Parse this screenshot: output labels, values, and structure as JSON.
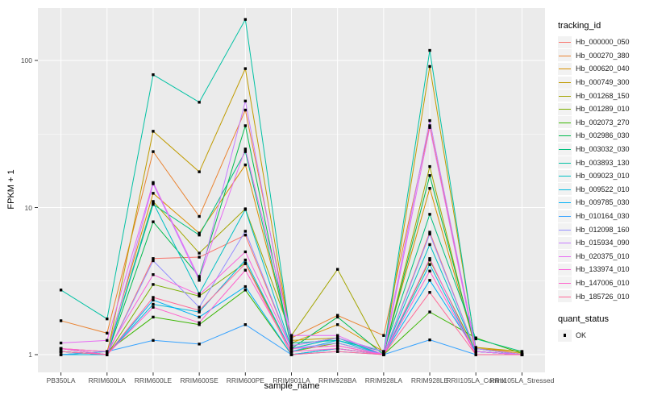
{
  "chart_data": {
    "type": "line",
    "title": "",
    "xlabel": "sample_name",
    "ylabel": "FPKM + 1",
    "y_scale": "log10",
    "yticks": [
      "1",
      "10",
      "100"
    ],
    "ytick_values": [
      1,
      10,
      100
    ],
    "minor_gridline_values": [
      3.1623,
      31.623
    ],
    "ylim": [
      0.76,
      227
    ],
    "grid": "white major+minor gridlines on gray panel",
    "legend_position": "right",
    "categories": [
      "PB350LA",
      "RRIM600LA",
      "RRIM600LE",
      "RRIM600SE",
      "RRIM600PE",
      "RRIM901LA",
      "RRIM928BA",
      "RRIM928LA",
      "RRIM928LE",
      "RRII105LA_Control",
      "RRII105LA_Stressed"
    ],
    "series": [
      {
        "name": "Hb_000000_050",
        "color": "#F8766D",
        "values": [
          1.05,
          1.0,
          4.5,
          4.6,
          6.5,
          1.1,
          1.15,
          1.0,
          6.8,
          1.05,
          1.0
        ]
      },
      {
        "name": "Hb_000270_380",
        "color": "#EA8331",
        "values": [
          1.7,
          1.4,
          24,
          8.7,
          46,
          1.3,
          1.85,
          1.35,
          36,
          1.1,
          1.02
        ]
      },
      {
        "name": "Hb_000620_040",
        "color": "#D89000",
        "values": [
          1.1,
          1.05,
          12.5,
          6.7,
          19.5,
          1.2,
          1.6,
          1.05,
          13.5,
          1.1,
          1.05
        ]
      },
      {
        "name": "Hb_000749_300",
        "color": "#C09B00",
        "values": [
          1.1,
          1.0,
          33,
          17.5,
          88,
          1.25,
          1.3,
          1.0,
          91,
          1.12,
          1.05
        ]
      },
      {
        "name": "Hb_001268_150",
        "color": "#A3A500",
        "values": [
          1.05,
          1.0,
          11,
          4.9,
          9.8,
          1.35,
          3.8,
          1.0,
          19,
          1.05,
          1.0
        ]
      },
      {
        "name": "Hb_001289_010",
        "color": "#7CAE00",
        "values": [
          1.0,
          1.0,
          3.0,
          2.5,
          4.2,
          1.05,
          1.2,
          1.0,
          4.4,
          1.05,
          1.0
        ]
      },
      {
        "name": "Hb_002073_270",
        "color": "#39B600",
        "values": [
          1.0,
          1.05,
          1.8,
          1.6,
          2.75,
          1.0,
          1.1,
          1.0,
          1.95,
          1.3,
          1.02
        ]
      },
      {
        "name": "Hb_002986_030",
        "color": "#00BB4E",
        "values": [
          1.05,
          1.0,
          8.0,
          3.4,
          36,
          1.1,
          1.8,
          1.0,
          16.5,
          1.1,
          1.0
        ]
      },
      {
        "name": "Hb_003032_030",
        "color": "#00BF7D",
        "values": [
          1.1,
          1.0,
          10.5,
          6.5,
          24,
          1.15,
          1.3,
          1.05,
          9.0,
          1.28,
          1.05
        ]
      },
      {
        "name": "Hb_003893_130",
        "color": "#00C1A3",
        "values": [
          2.75,
          1.75,
          80,
          52,
          190,
          1.2,
          1.25,
          1.05,
          117,
          1.1,
          1.0
        ]
      },
      {
        "name": "Hb_009023_010",
        "color": "#00BFC4",
        "values": [
          1.05,
          1.0,
          10.8,
          2.6,
          9.7,
          1.1,
          1.3,
          1.0,
          5.6,
          1.05,
          1.0
        ]
      },
      {
        "name": "Hb_009522_010",
        "color": "#00BAE0",
        "values": [
          1.0,
          1.0,
          2.2,
          1.95,
          4.4,
          1.05,
          1.25,
          1.0,
          4.1,
          1.0,
          1.0
        ]
      },
      {
        "name": "Hb_009785_030",
        "color": "#00B0F6",
        "values": [
          1.05,
          1.0,
          2.35,
          1.8,
          2.9,
          1.0,
          1.1,
          1.0,
          3.2,
          1.05,
          1.0
        ]
      },
      {
        "name": "Hb_010164_030",
        "color": "#35A2FF",
        "values": [
          1.0,
          1.05,
          1.25,
          1.18,
          1.6,
          1.0,
          1.05,
          1.0,
          1.26,
          1.0,
          1.0
        ]
      },
      {
        "name": "Hb_012098_160",
        "color": "#9590FF",
        "values": [
          1.05,
          1.0,
          4.35,
          2.1,
          6.9,
          1.1,
          1.2,
          1.0,
          6.6,
          1.05,
          1.0
        ]
      },
      {
        "name": "Hb_015934_090",
        "color": "#C77CFF",
        "values": [
          1.1,
          1.0,
          14.5,
          3.2,
          53,
          1.15,
          1.3,
          1.05,
          39,
          1.1,
          1.0
        ]
      },
      {
        "name": "Hb_020375_010",
        "color": "#E76BF3",
        "values": [
          1.2,
          1.25,
          14.8,
          3.3,
          25,
          1.35,
          1.35,
          1.0,
          35,
          1.05,
          1.0
        ]
      },
      {
        "name": "Hb_133974_010",
        "color": "#FA62DB",
        "values": [
          1.1,
          1.05,
          3.5,
          2.55,
          5.0,
          1.1,
          1.15,
          1.0,
          4.5,
          1.0,
          1.0
        ]
      },
      {
        "name": "Hb_147006_010",
        "color": "#FF61CC",
        "values": [
          1.1,
          1.0,
          2.1,
          1.65,
          3.75,
          1.05,
          1.1,
          1.0,
          3.7,
          1.0,
          1.0
        ]
      },
      {
        "name": "Hb_185726_010",
        "color": "#FF6A98",
        "values": [
          1.05,
          1.0,
          2.45,
          2.0,
          4.15,
          1.0,
          1.05,
          1.0,
          2.65,
          1.0,
          1.0
        ]
      }
    ],
    "point_marker": {
      "shape": "square",
      "color": "#000000",
      "size": 3.4
    }
  },
  "legend": {
    "tracking_title": "tracking_id",
    "quant_title": "quant_status",
    "quant_items": [
      {
        "label": "OK",
        "marker": "black-square"
      }
    ]
  },
  "colors": {
    "panel_bg": "#EBEBEB",
    "grid": "#FFFFFF",
    "axis_text": "#4D4D4D",
    "title_text": "#000000",
    "legend_key_bg": "#F2F2F2",
    "tick_mark": "#333333",
    "page_bg": "#FFFFFF"
  }
}
